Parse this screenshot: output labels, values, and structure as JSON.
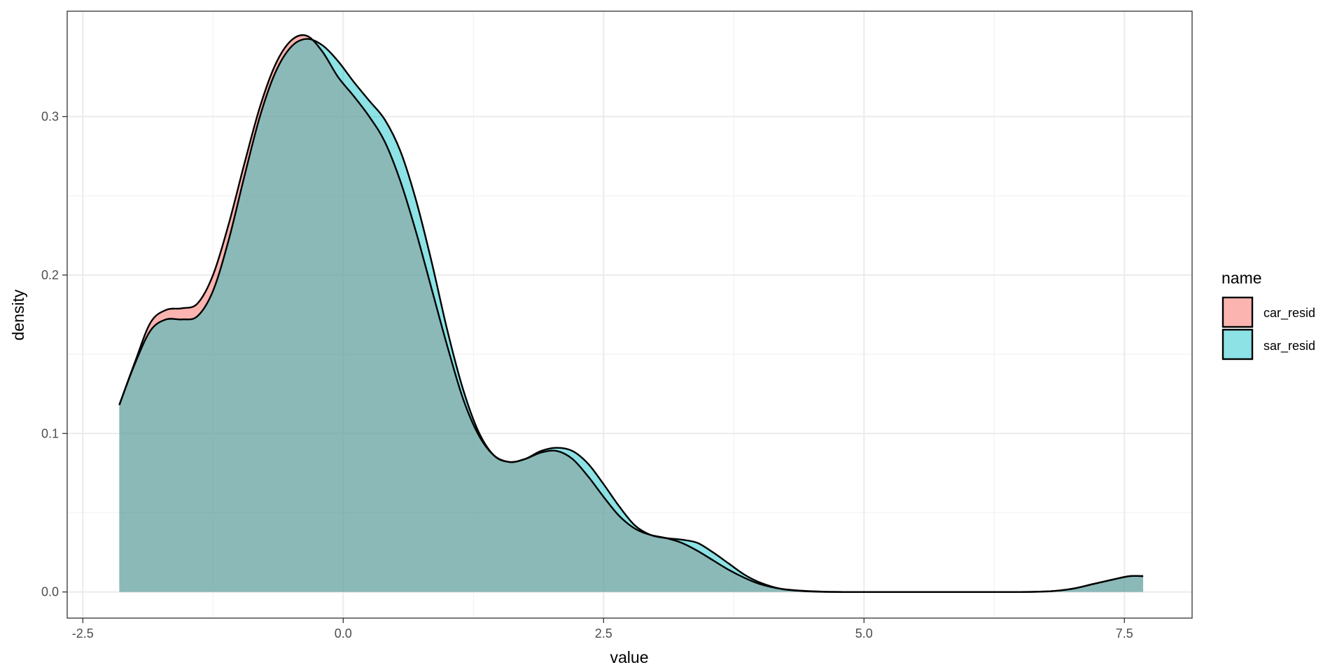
{
  "chart_data": {
    "type": "area",
    "subtype": "density",
    "xlabel": "value",
    "ylabel": "density",
    "xlim": [
      -2.65,
      8.15
    ],
    "ylim": [
      -0.0165,
      0.3665
    ],
    "x_ticks": [
      -2.5,
      0,
      2.5,
      5,
      7.5
    ],
    "x_tick_labels": [
      "-2.5",
      "0.0",
      "2.5",
      "5.0",
      "7.5"
    ],
    "y_ticks": [
      0,
      0.1,
      0.2,
      0.3
    ],
    "y_tick_labels": [
      "0.0",
      "0.1",
      "0.2",
      "0.3"
    ],
    "grid": true,
    "legend": {
      "title": "name",
      "position": "right"
    },
    "series": [
      {
        "name": "car_resid",
        "color": "#F8766D",
        "x": [
          -2.15,
          -2.0,
          -1.85,
          -1.7,
          -1.55,
          -1.4,
          -1.25,
          -1.1,
          -0.95,
          -0.8,
          -0.65,
          -0.5,
          -0.35,
          -0.2,
          -0.05,
          0.1,
          0.25,
          0.4,
          0.55,
          0.7,
          0.85,
          1.0,
          1.15,
          1.3,
          1.45,
          1.6,
          1.75,
          1.9,
          2.05,
          2.2,
          2.35,
          2.5,
          2.65,
          2.8,
          2.95,
          3.1,
          3.25,
          3.4,
          3.55,
          3.7,
          3.85,
          4.0,
          4.2,
          4.4,
          4.6,
          4.8,
          5.0,
          5.5,
          6.0,
          6.5,
          6.8,
          7.0,
          7.2,
          7.4,
          7.55,
          7.68
        ],
        "values": [
          0.118,
          0.145,
          0.17,
          0.178,
          0.179,
          0.182,
          0.2,
          0.232,
          0.27,
          0.306,
          0.333,
          0.348,
          0.351,
          0.341,
          0.325,
          0.313,
          0.3,
          0.284,
          0.259,
          0.227,
          0.191,
          0.155,
          0.122,
          0.099,
          0.086,
          0.082,
          0.084,
          0.088,
          0.089,
          0.084,
          0.073,
          0.06,
          0.048,
          0.04,
          0.036,
          0.034,
          0.031,
          0.026,
          0.02,
          0.014,
          0.009,
          0.005,
          0.002,
          0.0008,
          0.0002,
          0.0,
          0.0,
          0.0,
          0.0,
          0.0,
          0.0005,
          0.002,
          0.005,
          0.008,
          0.01,
          0.01
        ]
      },
      {
        "name": "sar_resid",
        "color": "#00BFC4",
        "x": [
          -2.15,
          -2.0,
          -1.85,
          -1.7,
          -1.55,
          -1.4,
          -1.25,
          -1.1,
          -0.95,
          -0.8,
          -0.65,
          -0.5,
          -0.35,
          -0.2,
          -0.05,
          0.1,
          0.25,
          0.4,
          0.55,
          0.7,
          0.85,
          1.0,
          1.15,
          1.3,
          1.45,
          1.6,
          1.75,
          1.9,
          2.05,
          2.2,
          2.35,
          2.5,
          2.65,
          2.8,
          2.95,
          3.1,
          3.25,
          3.4,
          3.55,
          3.7,
          3.85,
          4.0,
          4.2,
          4.4,
          4.6,
          4.8,
          5.0,
          5.5,
          6.0,
          6.5,
          6.8,
          7.0,
          7.2,
          7.4,
          7.55,
          7.68
        ],
        "values": [
          0.118,
          0.144,
          0.165,
          0.172,
          0.172,
          0.174,
          0.19,
          0.222,
          0.262,
          0.3,
          0.328,
          0.344,
          0.349,
          0.345,
          0.335,
          0.322,
          0.31,
          0.298,
          0.278,
          0.247,
          0.208,
          0.165,
          0.128,
          0.101,
          0.086,
          0.082,
          0.084,
          0.089,
          0.091,
          0.089,
          0.081,
          0.068,
          0.054,
          0.042,
          0.036,
          0.034,
          0.033,
          0.031,
          0.025,
          0.018,
          0.011,
          0.006,
          0.002,
          0.0006,
          0.0001,
          0.0,
          0.0,
          0.0,
          0.0,
          0.0,
          0.0005,
          0.002,
          0.005,
          0.008,
          0.01,
          0.01
        ]
      }
    ]
  }
}
